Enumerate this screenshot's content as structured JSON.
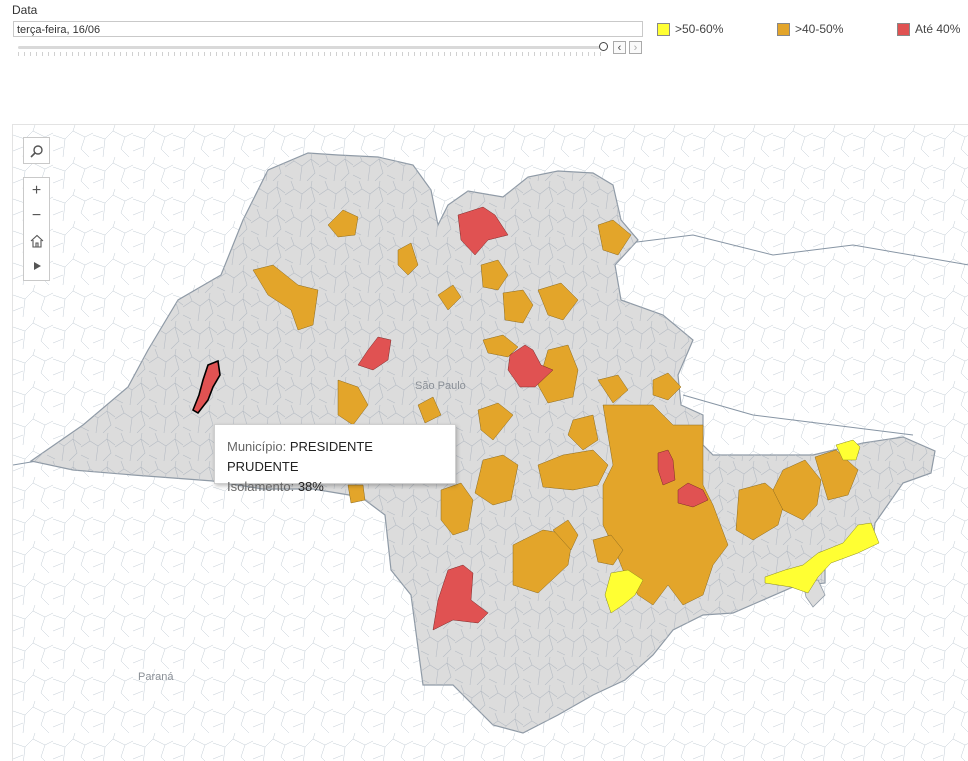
{
  "filter": {
    "label": "Data",
    "value": "terça-feira, 16/06",
    "prev_icon": "chevron-left-icon",
    "next_icon": "chevron-right-icon"
  },
  "legend": [
    {
      "label": ">50-60%",
      "color": "#ffff33"
    },
    {
      "label": ">40-50%",
      "color": "#e3a52a"
    },
    {
      "label": "Até 40%",
      "color": "#e05252"
    }
  ],
  "map": {
    "state_color": "#dcdcdc",
    "border_color": "#9aa5b1",
    "labels": {
      "state": "São Paulo",
      "neighbor": "Paraná"
    },
    "tools": [
      "search-icon",
      "zoom-in-icon",
      "zoom-out-icon",
      "home-icon",
      "play-icon"
    ]
  },
  "tooltip": {
    "key1": "Município:",
    "val1": "PRESIDENTE PRUDENTE",
    "key2": "Isolamento:",
    "val2": "38%"
  }
}
